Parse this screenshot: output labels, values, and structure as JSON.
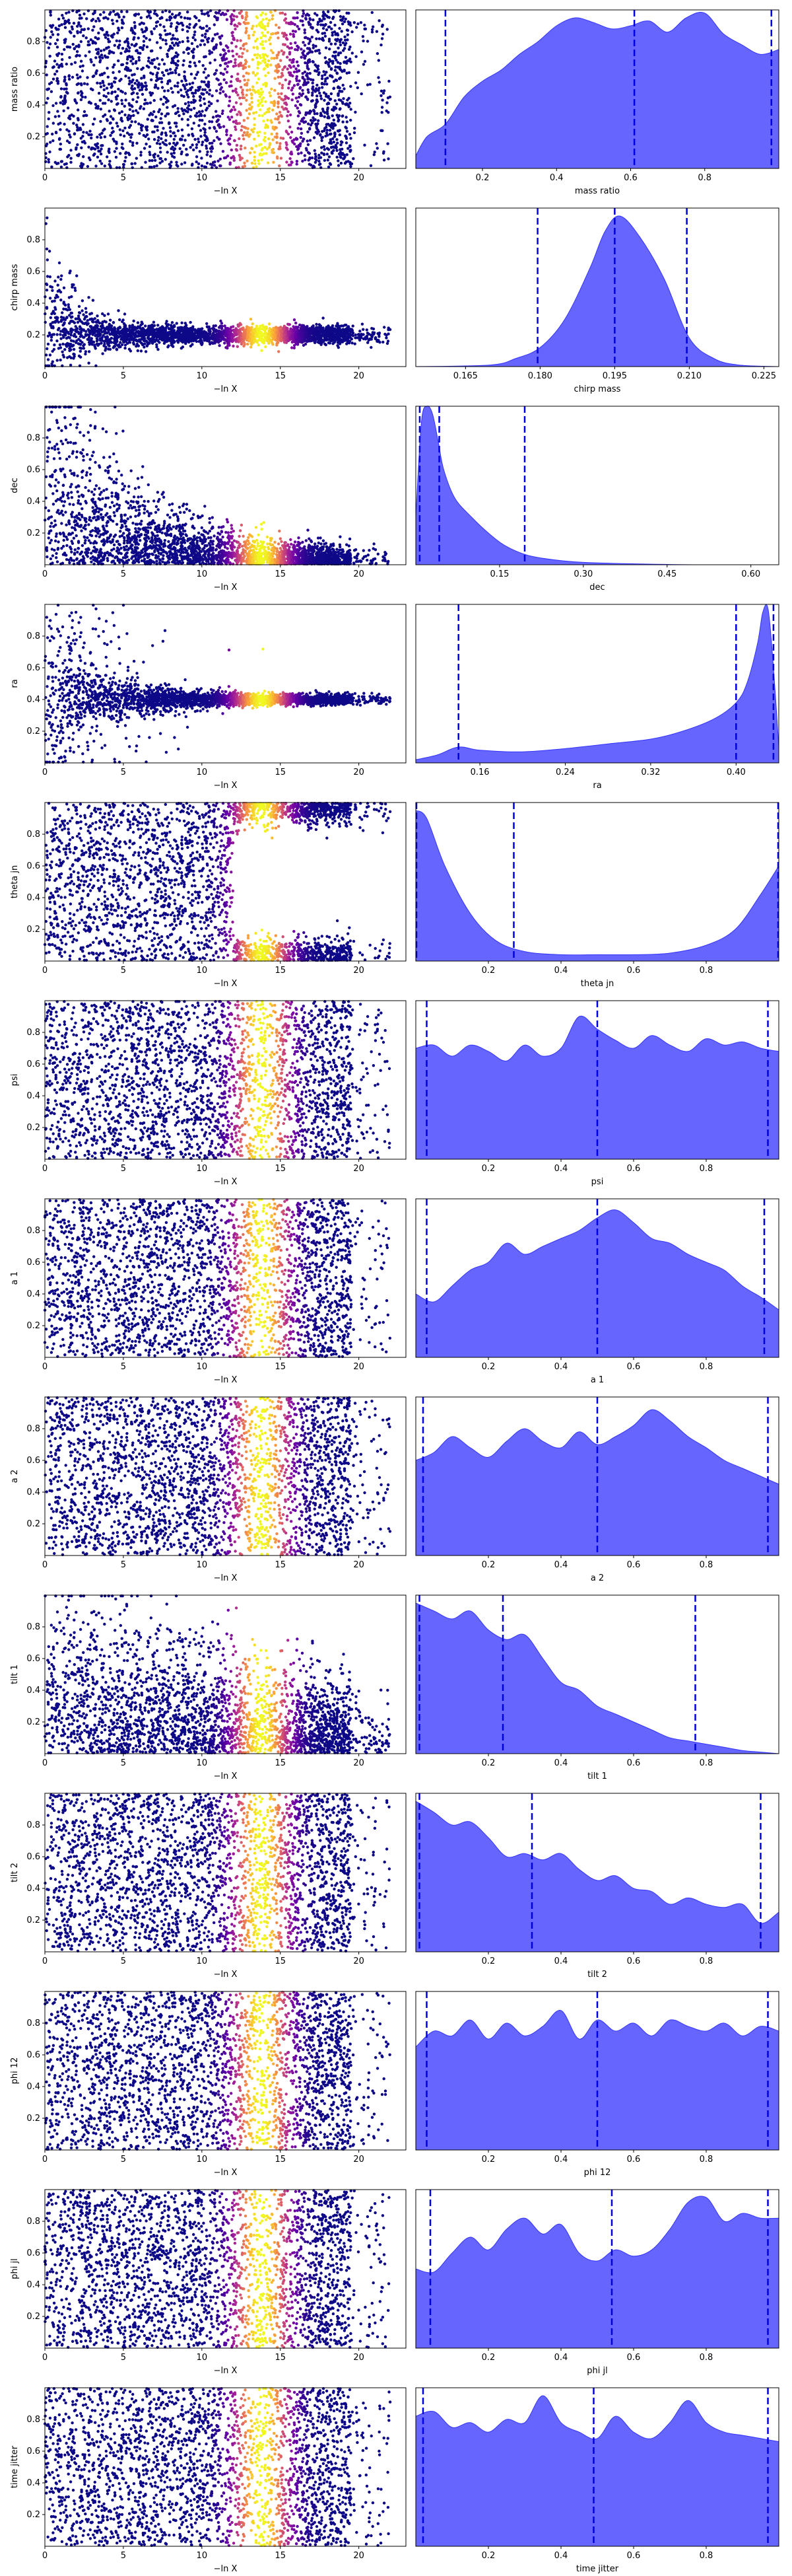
{
  "figure": {
    "colors": {
      "kde_fill": "#6666ff",
      "kde_edge": "#3333ff",
      "quantile_line": "#0000dd",
      "cmap": [
        "#0d0887",
        "#6a00a8",
        "#b12a90",
        "#e16462",
        "#fca636",
        "#f0f921"
      ]
    },
    "trace_xlabel": "−ln X",
    "trace_xticks": [
      0,
      5,
      10,
      15,
      20
    ],
    "trace_xlim": [
      0,
      23
    ]
  },
  "chart_data": [
    {
      "type": "scatter",
      "param": "mass ratio",
      "ylabel": "mass ratio",
      "range": [
        0.02,
        1.0
      ],
      "yticks": [
        0.2,
        0.4,
        0.6,
        0.8
      ],
      "yticklabels": [
        "0.2",
        "0.4",
        "0.6",
        "0.8"
      ],
      "trace": "uniform",
      "kde_label": "mass ratio",
      "kde_xticks": [
        0.2,
        0.4,
        0.6,
        0.8
      ],
      "kde_xticklabels": [
        "0.2",
        "0.4",
        "0.6",
        "0.8"
      ],
      "quantiles": [
        0.1,
        0.61,
        0.98
      ],
      "kde_x": [
        0.02,
        0.05,
        0.1,
        0.15,
        0.2,
        0.25,
        0.3,
        0.35,
        0.4,
        0.45,
        0.5,
        0.55,
        0.6,
        0.65,
        0.7,
        0.75,
        0.8,
        0.85,
        0.9,
        0.95,
        1.0
      ],
      "kde_y": [
        0.08,
        0.2,
        0.28,
        0.45,
        0.55,
        0.62,
        0.72,
        0.8,
        0.9,
        0.95,
        0.92,
        0.88,
        0.9,
        0.93,
        0.86,
        0.95,
        0.98,
        0.85,
        0.78,
        0.72,
        0.75
      ]
    },
    {
      "type": "scatter",
      "param": "chirp mass",
      "ylabel": "chirp mass",
      "range": [
        0.155,
        0.228
      ],
      "yticks": [
        0.2,
        0.4,
        0.6,
        0.8
      ],
      "yticklabels": [
        "0.2",
        "0.4",
        "0.6",
        "0.8"
      ],
      "trace": "converge_low",
      "kde_label": "chirp mass",
      "kde_xticks": [
        0.165,
        0.18,
        0.195,
        0.21,
        0.225
      ],
      "kde_xticklabels": [
        "0.165",
        "0.180",
        "0.195",
        "0.210",
        "0.225"
      ],
      "quantiles": [
        0.1795,
        0.195,
        0.2095
      ],
      "kde_x": [
        0.155,
        0.17,
        0.175,
        0.18,
        0.185,
        0.19,
        0.193,
        0.196,
        0.2,
        0.205,
        0.21,
        0.215,
        0.22,
        0.228
      ],
      "kde_y": [
        0,
        0.01,
        0.05,
        0.12,
        0.3,
        0.62,
        0.85,
        0.95,
        0.82,
        0.55,
        0.18,
        0.05,
        0.01,
        0
      ]
    },
    {
      "type": "scatter",
      "param": "dec",
      "ylabel": "dec",
      "range": [
        0.0,
        0.65
      ],
      "yticks": [
        0.2,
        0.4,
        0.6,
        0.8
      ],
      "yticklabels": [
        "0.2",
        "0.4",
        "0.6",
        "0.8"
      ],
      "trace": "decay_low",
      "kde_label": "dec",
      "kde_xticks": [
        0.15,
        0.3,
        0.45,
        0.6
      ],
      "kde_xticklabels": [
        "0.15",
        "0.30",
        "0.45",
        "0.60"
      ],
      "quantiles": [
        0.007,
        0.042,
        0.195
      ],
      "kde_x": [
        0,
        0.01,
        0.02,
        0.03,
        0.04,
        0.05,
        0.07,
        0.1,
        0.13,
        0.16,
        0.2,
        0.25,
        0.3,
        0.4,
        0.5,
        0.65
      ],
      "kde_y": [
        0.3,
        0.9,
        1.0,
        0.95,
        0.78,
        0.6,
        0.42,
        0.3,
        0.2,
        0.12,
        0.06,
        0.03,
        0.015,
        0.005,
        0,
        0
      ]
    },
    {
      "type": "scatter",
      "param": "ra",
      "ylabel": "ra",
      "range": [
        0.1,
        0.44
      ],
      "yticks": [
        0.2,
        0.4,
        0.6,
        0.8
      ],
      "yticklabels": [
        "0.2",
        "0.4",
        "0.6",
        "0.8"
      ],
      "trace": "converge_mid",
      "kde_label": "ra",
      "kde_xticks": [
        0.16,
        0.24,
        0.32,
        0.4
      ],
      "kde_xticklabels": [
        "0.16",
        "0.24",
        "0.32",
        "0.40"
      ],
      "quantiles": [
        0.14,
        0.4,
        0.435
      ],
      "kde_x": [
        0.1,
        0.12,
        0.14,
        0.16,
        0.2,
        0.24,
        0.28,
        0.32,
        0.35,
        0.38,
        0.4,
        0.41,
        0.42,
        0.425,
        0.43,
        0.435,
        0.44
      ],
      "kde_y": [
        0.02,
        0.05,
        0.1,
        0.08,
        0.07,
        0.09,
        0.12,
        0.15,
        0.2,
        0.28,
        0.38,
        0.5,
        0.75,
        0.95,
        0.97,
        0.6,
        0.1
      ]
    },
    {
      "type": "scatter",
      "param": "theta jn",
      "ylabel": "theta jn",
      "range": [
        0.0,
        1.0
      ],
      "yticks": [
        0.2,
        0.4,
        0.6,
        0.8
      ],
      "yticklabels": [
        "0.2",
        "0.4",
        "0.6",
        "0.8"
      ],
      "trace": "bimodal",
      "kde_label": "theta jn",
      "kde_xticks": [
        0.2,
        0.4,
        0.6,
        0.8
      ],
      "kde_xticklabels": [
        "0.2",
        "0.4",
        "0.6",
        "0.8"
      ],
      "quantiles": [
        0.0,
        0.27,
        1.0
      ],
      "kde_x": [
        0,
        0.03,
        0.08,
        0.15,
        0.22,
        0.3,
        0.4,
        0.5,
        0.6,
        0.7,
        0.8,
        0.88,
        0.95,
        1.0
      ],
      "kde_y": [
        0.95,
        0.9,
        0.6,
        0.3,
        0.13,
        0.06,
        0.04,
        0.04,
        0.04,
        0.05,
        0.1,
        0.2,
        0.42,
        0.6
      ]
    },
    {
      "type": "scatter",
      "param": "psi",
      "ylabel": "psi",
      "range": [
        0.0,
        1.0
      ],
      "yticks": [
        0.2,
        0.4,
        0.6,
        0.8
      ],
      "yticklabels": [
        "0.2",
        "0.4",
        "0.6",
        "0.8"
      ],
      "trace": "uniform",
      "kde_label": "psi",
      "kde_xticks": [
        0.2,
        0.4,
        0.6,
        0.8
      ],
      "kde_xticklabels": [
        "0.2",
        "0.4",
        "0.6",
        "0.8"
      ],
      "quantiles": [
        0.03,
        0.5,
        0.97
      ],
      "kde_x": [
        0,
        0.05,
        0.1,
        0.15,
        0.2,
        0.25,
        0.3,
        0.35,
        0.4,
        0.45,
        0.5,
        0.55,
        0.6,
        0.65,
        0.7,
        0.75,
        0.8,
        0.85,
        0.9,
        0.95,
        1.0
      ],
      "kde_y": [
        0.7,
        0.72,
        0.65,
        0.72,
        0.68,
        0.62,
        0.72,
        0.65,
        0.7,
        0.9,
        0.82,
        0.75,
        0.7,
        0.78,
        0.72,
        0.68,
        0.76,
        0.72,
        0.74,
        0.7,
        0.68
      ]
    },
    {
      "type": "scatter",
      "param": "a 1",
      "ylabel": "a 1",
      "range": [
        0.0,
        1.0
      ],
      "yticks": [
        0.2,
        0.4,
        0.6,
        0.8
      ],
      "yticklabels": [
        "0.2",
        "0.4",
        "0.6",
        "0.8"
      ],
      "trace": "uniform",
      "kde_label": "a 1",
      "kde_xticks": [
        0.2,
        0.4,
        0.6,
        0.8
      ],
      "kde_xticklabels": [
        "0.2",
        "0.4",
        "0.6",
        "0.8"
      ],
      "quantiles": [
        0.03,
        0.5,
        0.96
      ],
      "kde_x": [
        0,
        0.05,
        0.1,
        0.15,
        0.2,
        0.25,
        0.3,
        0.35,
        0.4,
        0.45,
        0.5,
        0.55,
        0.6,
        0.65,
        0.7,
        0.75,
        0.8,
        0.85,
        0.9,
        0.95,
        1.0
      ],
      "kde_y": [
        0.4,
        0.35,
        0.45,
        0.55,
        0.6,
        0.72,
        0.65,
        0.7,
        0.75,
        0.8,
        0.88,
        0.93,
        0.85,
        0.75,
        0.72,
        0.65,
        0.6,
        0.55,
        0.45,
        0.38,
        0.3
      ]
    },
    {
      "type": "scatter",
      "param": "a 2",
      "ylabel": "a 2",
      "range": [
        0.0,
        1.0
      ],
      "yticks": [
        0.2,
        0.4,
        0.6,
        0.8
      ],
      "yticklabels": [
        "0.2",
        "0.4",
        "0.6",
        "0.8"
      ],
      "trace": "uniform",
      "kde_label": "a 2",
      "kde_xticks": [
        0.2,
        0.4,
        0.6,
        0.8
      ],
      "kde_xticklabels": [
        "0.2",
        "0.4",
        "0.6",
        "0.8"
      ],
      "quantiles": [
        0.02,
        0.5,
        0.97
      ],
      "kde_x": [
        0,
        0.05,
        0.1,
        0.15,
        0.2,
        0.25,
        0.3,
        0.35,
        0.4,
        0.45,
        0.5,
        0.55,
        0.6,
        0.65,
        0.7,
        0.75,
        0.8,
        0.85,
        0.9,
        0.95,
        1.0
      ],
      "kde_y": [
        0.6,
        0.65,
        0.75,
        0.68,
        0.62,
        0.72,
        0.8,
        0.72,
        0.68,
        0.78,
        0.7,
        0.75,
        0.82,
        0.92,
        0.85,
        0.75,
        0.68,
        0.6,
        0.55,
        0.5,
        0.45
      ]
    },
    {
      "type": "scatter",
      "param": "tilt 1",
      "ylabel": "tilt 1",
      "range": [
        0.0,
        1.0
      ],
      "yticks": [
        0.2,
        0.4,
        0.6,
        0.8
      ],
      "yticklabels": [
        "0.2",
        "0.4",
        "0.6",
        "0.8"
      ],
      "trace": "decay_mid",
      "kde_label": "tilt 1",
      "kde_xticks": [
        0.2,
        0.4,
        0.6,
        0.8
      ],
      "kde_xticklabels": [
        "0.2",
        "0.4",
        "0.6",
        "0.8"
      ],
      "quantiles": [
        0.01,
        0.24,
        0.77
      ],
      "kde_x": [
        0,
        0.05,
        0.1,
        0.15,
        0.2,
        0.25,
        0.3,
        0.35,
        0.4,
        0.45,
        0.5,
        0.55,
        0.6,
        0.65,
        0.7,
        0.75,
        0.8,
        0.85,
        0.9,
        0.95,
        1.0
      ],
      "kde_y": [
        0.95,
        0.9,
        0.85,
        0.9,
        0.78,
        0.72,
        0.75,
        0.6,
        0.45,
        0.4,
        0.3,
        0.25,
        0.2,
        0.15,
        0.1,
        0.08,
        0.06,
        0.04,
        0.02,
        0.01,
        0
      ]
    },
    {
      "type": "scatter",
      "param": "tilt 2",
      "ylabel": "tilt 2",
      "range": [
        0.0,
        1.0
      ],
      "yticks": [
        0.2,
        0.4,
        0.6,
        0.8
      ],
      "yticklabels": [
        "0.2",
        "0.4",
        "0.6",
        "0.8"
      ],
      "trace": "uniform",
      "kde_label": "tilt 2",
      "kde_xticks": [
        0.2,
        0.4,
        0.6,
        0.8
      ],
      "kde_xticklabels": [
        "0.2",
        "0.4",
        "0.6",
        "0.8"
      ],
      "quantiles": [
        0.01,
        0.32,
        0.95
      ],
      "kde_x": [
        0,
        0.05,
        0.1,
        0.15,
        0.2,
        0.25,
        0.3,
        0.35,
        0.4,
        0.45,
        0.5,
        0.55,
        0.6,
        0.65,
        0.7,
        0.75,
        0.8,
        0.85,
        0.9,
        0.95,
        1.0
      ],
      "kde_y": [
        0.95,
        0.88,
        0.8,
        0.82,
        0.72,
        0.6,
        0.62,
        0.58,
        0.62,
        0.52,
        0.45,
        0.48,
        0.4,
        0.38,
        0.3,
        0.34,
        0.3,
        0.28,
        0.3,
        0.18,
        0.25
      ]
    },
    {
      "type": "scatter",
      "param": "phi 12",
      "ylabel": "phi 12",
      "range": [
        0.0,
        1.0
      ],
      "yticks": [
        0.2,
        0.4,
        0.6,
        0.8
      ],
      "yticklabels": [
        "0.2",
        "0.4",
        "0.6",
        "0.8"
      ],
      "trace": "uniform",
      "kde_label": "phi 12",
      "kde_xticks": [
        0.2,
        0.4,
        0.6,
        0.8
      ],
      "kde_xticklabels": [
        "0.2",
        "0.4",
        "0.6",
        "0.8"
      ],
      "quantiles": [
        0.03,
        0.5,
        0.97
      ],
      "kde_x": [
        0,
        0.05,
        0.1,
        0.15,
        0.2,
        0.25,
        0.3,
        0.35,
        0.4,
        0.45,
        0.5,
        0.55,
        0.6,
        0.65,
        0.7,
        0.75,
        0.8,
        0.85,
        0.9,
        0.95,
        1.0
      ],
      "kde_y": [
        0.65,
        0.75,
        0.72,
        0.82,
        0.7,
        0.8,
        0.72,
        0.78,
        0.88,
        0.7,
        0.82,
        0.75,
        0.8,
        0.72,
        0.82,
        0.78,
        0.75,
        0.8,
        0.72,
        0.78,
        0.75
      ]
    },
    {
      "type": "scatter",
      "param": "phi jl",
      "ylabel": "phi jl",
      "range": [
        0.0,
        1.0
      ],
      "yticks": [
        0.2,
        0.4,
        0.6,
        0.8
      ],
      "yticklabels": [
        "0.2",
        "0.4",
        "0.6",
        "0.8"
      ],
      "trace": "uniform",
      "kde_label": "phi jl",
      "kde_xticks": [
        0.2,
        0.4,
        0.6,
        0.8
      ],
      "kde_xticklabels": [
        "0.2",
        "0.4",
        "0.6",
        "0.8"
      ],
      "quantiles": [
        0.04,
        0.54,
        0.97
      ],
      "kde_x": [
        0,
        0.05,
        0.1,
        0.15,
        0.2,
        0.25,
        0.3,
        0.35,
        0.4,
        0.45,
        0.5,
        0.55,
        0.6,
        0.65,
        0.7,
        0.75,
        0.8,
        0.85,
        0.9,
        0.95,
        1.0
      ],
      "kde_y": [
        0.5,
        0.48,
        0.6,
        0.7,
        0.62,
        0.75,
        0.82,
        0.72,
        0.78,
        0.6,
        0.55,
        0.62,
        0.58,
        0.62,
        0.75,
        0.92,
        0.95,
        0.8,
        0.85,
        0.82,
        0.82
      ]
    },
    {
      "type": "scatter",
      "param": "time jitter",
      "ylabel": "time jitter",
      "range": [
        0.0,
        1.0
      ],
      "yticks": [
        0.2,
        0.4,
        0.6,
        0.8
      ],
      "yticklabels": [
        "0.2",
        "0.4",
        "0.6",
        "0.8"
      ],
      "trace": "uniform",
      "kde_label": "time jitter",
      "kde_xticks": [
        0.2,
        0.4,
        0.6,
        0.8
      ],
      "kde_xticklabels": [
        "0.2",
        "0.4",
        "0.6",
        "0.8"
      ],
      "quantiles": [
        0.02,
        0.49,
        0.97
      ],
      "kde_x": [
        0,
        0.05,
        0.1,
        0.15,
        0.2,
        0.25,
        0.3,
        0.35,
        0.4,
        0.45,
        0.5,
        0.55,
        0.6,
        0.65,
        0.7,
        0.75,
        0.8,
        0.85,
        0.9,
        0.95,
        1.0
      ],
      "kde_y": [
        0.82,
        0.85,
        0.75,
        0.78,
        0.72,
        0.8,
        0.78,
        0.95,
        0.78,
        0.72,
        0.68,
        0.82,
        0.72,
        0.68,
        0.78,
        0.92,
        0.78,
        0.72,
        0.7,
        0.68,
        0.66
      ]
    }
  ]
}
